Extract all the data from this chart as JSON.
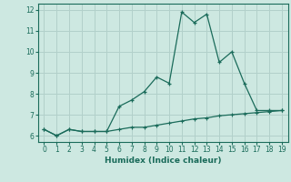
{
  "xlabel": "Humidex (Indice chaleur)",
  "background_color": "#cde8e1",
  "grid_color": "#b2d0ca",
  "line_color": "#1a6b5a",
  "x": [
    0,
    1,
    2,
    3,
    4,
    5,
    6,
    7,
    8,
    9,
    10,
    11,
    12,
    13,
    14,
    15,
    16,
    17,
    18,
    19
  ],
  "y_upper": [
    6.3,
    6.0,
    6.3,
    6.2,
    6.2,
    6.2,
    7.4,
    7.7,
    8.1,
    8.8,
    8.5,
    11.9,
    11.4,
    11.8,
    9.5,
    10.0,
    8.5,
    7.2,
    7.2,
    7.2
  ],
  "y_lower": [
    6.3,
    6.0,
    6.3,
    6.2,
    6.2,
    6.2,
    6.3,
    6.4,
    6.4,
    6.5,
    6.6,
    6.7,
    6.8,
    6.85,
    6.95,
    7.0,
    7.05,
    7.1,
    7.15,
    7.2
  ],
  "ylim": [
    5.7,
    12.3
  ],
  "xlim": [
    -0.5,
    19.5
  ],
  "yticks": [
    6,
    7,
    8,
    9,
    10,
    11,
    12
  ],
  "xticks": [
    0,
    1,
    2,
    3,
    4,
    5,
    6,
    7,
    8,
    9,
    10,
    11,
    12,
    13,
    14,
    15,
    16,
    17,
    18,
    19
  ]
}
